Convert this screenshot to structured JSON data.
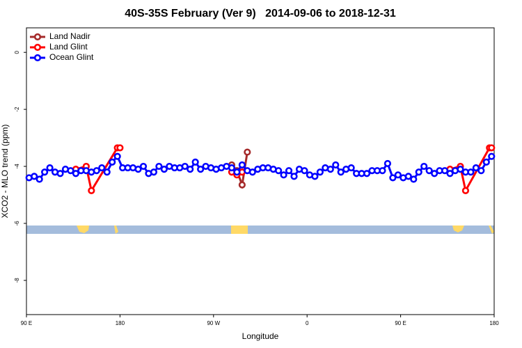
{
  "chart_data": {
    "type": "line",
    "title": "40S-35S February (Ver 9)   2014-09-06 to 2018-12-31",
    "xlabel": "Longitude",
    "ylabel": "XCO2 - MLO trend (ppm)",
    "xlim": [
      90,
      540
    ],
    "xticks": [
      {
        "value": 90,
        "label": "90 E"
      },
      {
        "value": 180,
        "label": "180"
      },
      {
        "value": 270,
        "label": "90 W"
      },
      {
        "value": 360,
        "label": "0"
      },
      {
        "value": 450,
        "label": "90 E"
      },
      {
        "value": 540,
        "label": "180"
      }
    ],
    "ylim": [
      -9.2,
      0.86
    ],
    "yticks": [
      0,
      -2,
      -4,
      -6,
      -8
    ],
    "legend": "top-left",
    "series": [
      {
        "name": "Land Nadir",
        "color": "#a52a2a",
        "x": [
          287.5,
          292.5,
          297.5,
          302.5
        ],
        "values": [
          -3.95,
          -4.15,
          -4.65,
          -3.5
        ]
      },
      {
        "name": "Land Glint",
        "color": "#ff0000",
        "x": [
          137.5,
          147.5,
          152.5,
          177.5,
          180,
          null,
          287.5,
          292.5,
          297.5,
          null,
          497.5,
          507.5,
          512.5,
          535.5,
          537.5
        ],
        "values": [
          -4.1,
          -4.0,
          -4.85,
          -3.35,
          -3.35,
          null,
          -4.2,
          -4.3,
          -4.2,
          null,
          -4.1,
          -4.0,
          -4.85,
          -3.35,
          -3.35
        ]
      },
      {
        "name": "Ocean Glint",
        "color": "#0000ff",
        "x": [
          92.5,
          97.5,
          102.5,
          107.5,
          112.5,
          117.5,
          122.5,
          127.5,
          132.5,
          137.5,
          142.5,
          147.5,
          152.5,
          157.5,
          162.5,
          167.5,
          172.5,
          177.5,
          182.5,
          187.5,
          192.5,
          197.5,
          202.5,
          207.5,
          212.5,
          217.5,
          222.5,
          227.5,
          232.5,
          237.5,
          242.5,
          247.5,
          252.5,
          257.5,
          262.5,
          267.5,
          272.5,
          277.5,
          282.5,
          287.5,
          292.5,
          297.5,
          302.5,
          307.5,
          312.5,
          317.5,
          322.5,
          327.5,
          332.5,
          337.5,
          342.5,
          347.5,
          352.5,
          357.5,
          362.5,
          367.5,
          372.5,
          377.5,
          382.5,
          387.5,
          392.5,
          397.5,
          402.5,
          407.5,
          412.5,
          417.5,
          422.5,
          427.5,
          432.5,
          437.5,
          442.5,
          447.5,
          452.5,
          457.5,
          462.5,
          467.5,
          472.5,
          477.5,
          482.5,
          487.5,
          492.5,
          497.5,
          502.5,
          507.5,
          512.5,
          517.5,
          522.5,
          527.5,
          532.5,
          537.5
        ],
        "values": [
          -4.4,
          -4.35,
          -4.45,
          -4.2,
          -4.05,
          -4.2,
          -4.25,
          -4.1,
          -4.15,
          -4.25,
          -4.15,
          -4.15,
          -4.2,
          -4.15,
          -4.05,
          -4.2,
          -3.85,
          -3.65,
          -4.05,
          -4.05,
          -4.05,
          -4.1,
          -4.0,
          -4.25,
          -4.2,
          -4.0,
          -4.1,
          -4.0,
          -4.05,
          -4.05,
          -4.0,
          -4.1,
          -3.85,
          -4.1,
          -4.0,
          -4.05,
          -4.1,
          -4.05,
          -4.0,
          -4.05,
          -4.2,
          -3.95,
          -4.15,
          -4.2,
          -4.1,
          -4.05,
          -4.05,
          -4.1,
          -4.15,
          -4.3,
          -4.15,
          -4.35,
          -4.1,
          -4.15,
          -4.3,
          -4.35,
          -4.2,
          -4.05,
          -4.1,
          -3.95,
          -4.2,
          -4.1,
          -4.05,
          -4.25,
          -4.25,
          -4.25,
          -4.15,
          -4.15,
          -4.15,
          -3.9,
          -4.4,
          -4.3,
          -4.4,
          -4.35,
          -4.45,
          -4.2,
          -4.0,
          -4.15,
          -4.25,
          -4.15,
          -4.15,
          -4.25,
          -4.15,
          -4.1,
          -4.2,
          -4.2,
          -4.05,
          -4.15,
          -3.85,
          -3.65
        ]
      }
    ]
  }
}
